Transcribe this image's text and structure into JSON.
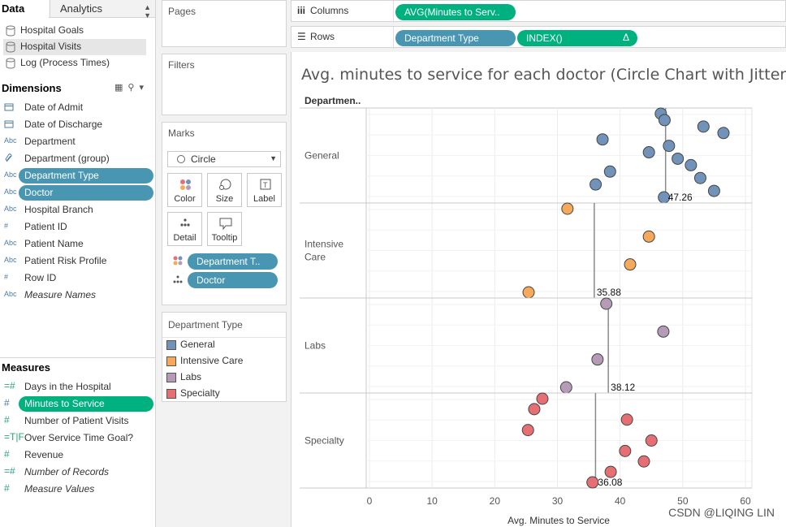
{
  "data_pane": {
    "tab_data": "Data",
    "tab_analytics": "Analytics",
    "datasources": [
      {
        "label": "Hospital Goals",
        "selected": false
      },
      {
        "label": "Hospital Visits",
        "selected": true
      },
      {
        "label": "Log (Process Times)",
        "selected": false
      }
    ],
    "dimensions_title": "Dimensions",
    "dimensions": [
      {
        "type": "date",
        "label": "Date of Admit",
        "pill": false,
        "italic": false
      },
      {
        "type": "date",
        "label": "Date of Discharge",
        "pill": false,
        "italic": false
      },
      {
        "type": "Abc",
        "label": "Department",
        "pill": false,
        "italic": false
      },
      {
        "type": "group",
        "label": "Department (group)",
        "pill": false,
        "italic": false
      },
      {
        "type": "Abc",
        "label": "Department Type",
        "pill": true,
        "italic": false
      },
      {
        "type": "Abc",
        "label": "Doctor",
        "pill": true,
        "italic": false
      },
      {
        "type": "Abc",
        "label": "Hospital Branch",
        "pill": false,
        "italic": false
      },
      {
        "type": "#",
        "label": "Patient ID",
        "pill": false,
        "italic": false
      },
      {
        "type": "Abc",
        "label": "Patient Name",
        "pill": false,
        "italic": false
      },
      {
        "type": "Abc",
        "label": "Patient Risk Profile",
        "pill": false,
        "italic": false
      },
      {
        "type": "#",
        "label": "Row ID",
        "pill": false,
        "italic": false
      },
      {
        "type": "Abc",
        "label": "Measure Names",
        "pill": false,
        "italic": true
      }
    ],
    "measures_title": "Measures",
    "measures": [
      {
        "type": "=#",
        "label": "Days in the Hospital",
        "pill": false,
        "italic": false
      },
      {
        "type": "#",
        "label": "Minutes to Service",
        "pill": true,
        "italic": false
      },
      {
        "type": "#",
        "label": "Number of Patient Visits",
        "pill": false,
        "italic": false
      },
      {
        "type": "=T|F",
        "label": "Over Service Time Goal?",
        "pill": false,
        "italic": false
      },
      {
        "type": "#",
        "label": "Revenue",
        "pill": false,
        "italic": false
      },
      {
        "type": "=#",
        "label": "Number of Records",
        "pill": false,
        "italic": true
      },
      {
        "type": "#",
        "label": "Measure Values",
        "pill": false,
        "italic": true
      }
    ]
  },
  "pages_card": {
    "title": "Pages"
  },
  "filters_card": {
    "title": "Filters"
  },
  "marks_card": {
    "title": "Marks",
    "mark_type": "Circle",
    "buttons": [
      "Color",
      "Size",
      "Label",
      "Detail",
      "Tooltip"
    ],
    "pills": [
      "Department T..",
      "Doctor"
    ]
  },
  "legend": {
    "title": "Department Type",
    "items": [
      {
        "label": "General",
        "color": "#7193b9"
      },
      {
        "label": "Intensive Care",
        "color": "#f6a95b"
      },
      {
        "label": "Labs",
        "color": "#b69bb6"
      },
      {
        "label": "Specialty",
        "color": "#e56f72"
      }
    ]
  },
  "columns_shelf": {
    "label": "Columns",
    "pills": [
      "AVG(Minutes to Serv.."
    ]
  },
  "rows_shelf": {
    "label": "Rows",
    "pills": [
      "Department Type",
      "INDEX()"
    ],
    "delta": "Δ"
  },
  "viz": {
    "title": "Avg. minutes to service for each doctor (Circle Chart with Jitter)",
    "row_header": "Departmen..",
    "watermark": "CSDN @LIQING LIN"
  },
  "chart_data": {
    "type": "scatter",
    "title": "Avg. minutes to service for each doctor (Circle Chart with Jitter)",
    "xlabel": "Avg. Minutes to Service",
    "ylabel": "Department Type",
    "xlim": [
      0,
      60
    ],
    "xticks": [
      0,
      10,
      20,
      30,
      40,
      50,
      60
    ],
    "grid": true,
    "panes": [
      {
        "name": "General",
        "color": "#7193b9",
        "average": 47.26,
        "average_label": "47.26",
        "points": [
          {
            "x": 46.5,
            "index": 1
          },
          {
            "x": 47.1,
            "index": 2
          },
          {
            "x": 53.3,
            "index": 3
          },
          {
            "x": 56.5,
            "index": 4
          },
          {
            "x": 37.2,
            "index": 5
          },
          {
            "x": 47.8,
            "index": 6
          },
          {
            "x": 44.6,
            "index": 7
          },
          {
            "x": 49.2,
            "index": 8
          },
          {
            "x": 51.3,
            "index": 9
          },
          {
            "x": 38.4,
            "index": 10
          },
          {
            "x": 52.8,
            "index": 11
          },
          {
            "x": 36.1,
            "index": 12
          },
          {
            "x": 55.0,
            "index": 13
          },
          {
            "x": 47.0,
            "index": 14
          }
        ]
      },
      {
        "name": "Intensive Care",
        "color": "#f6a95b",
        "average": 35.88,
        "average_label": "35.88",
        "points": [
          {
            "x": 31.6,
            "index": 1
          },
          {
            "x": 44.6,
            "index": 2
          },
          {
            "x": 41.6,
            "index": 3
          },
          {
            "x": 25.4,
            "index": 4
          }
        ]
      },
      {
        "name": "Labs",
        "color": "#b69bb6",
        "average": 38.12,
        "average_label": "38.12",
        "points": [
          {
            "x": 37.8,
            "index": 1
          },
          {
            "x": 46.9,
            "index": 2
          },
          {
            "x": 36.4,
            "index": 3
          },
          {
            "x": 31.4,
            "index": 4
          }
        ]
      },
      {
        "name": "Specialty",
        "color": "#e56f72",
        "average": 36.08,
        "average_label": "36.08",
        "points": [
          {
            "x": 27.6,
            "index": 1
          },
          {
            "x": 26.3,
            "index": 2
          },
          {
            "x": 41.1,
            "index": 3
          },
          {
            "x": 25.3,
            "index": 4
          },
          {
            "x": 45.0,
            "index": 5
          },
          {
            "x": 40.8,
            "index": 6
          },
          {
            "x": 43.8,
            "index": 7
          },
          {
            "x": 38.5,
            "index": 8
          },
          {
            "x": 35.6,
            "index": 9
          }
        ]
      }
    ]
  }
}
